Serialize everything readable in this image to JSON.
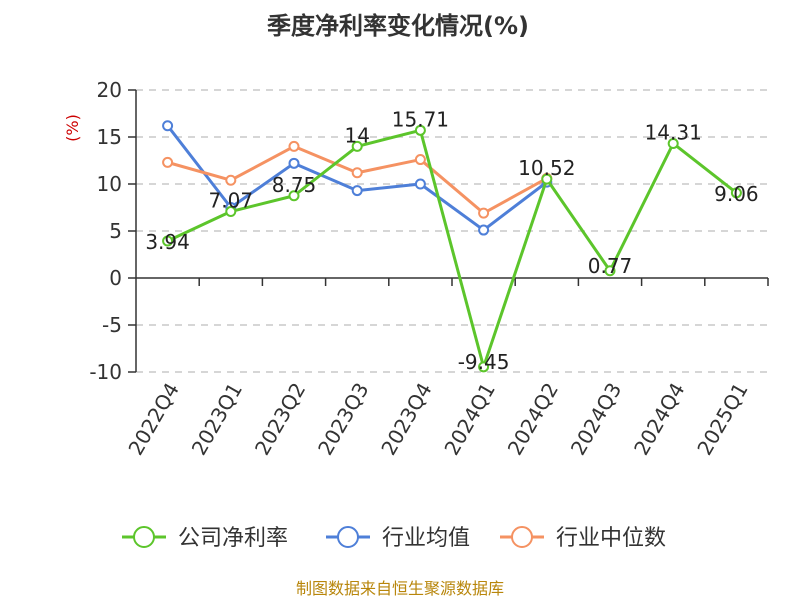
{
  "chart_data": {
    "type": "line",
    "title": "季度净利率变化情况(%)",
    "ylabel": "(%)",
    "xlabel": "",
    "ylim": [
      -10,
      20
    ],
    "yticks": [
      20,
      15,
      10,
      5,
      0,
      -5,
      -10
    ],
    "grid": true,
    "legend_position": "bottom",
    "categories": [
      "2022Q4",
      "2023Q1",
      "2023Q2",
      "2023Q3",
      "2023Q4",
      "2024Q1",
      "2024Q2",
      "2024Q3",
      "2024Q4",
      "2025Q1"
    ],
    "series": [
      {
        "name": "公司净利率",
        "color": "#5cc52b",
        "values": [
          3.94,
          7.07,
          8.75,
          14,
          15.71,
          -9.45,
          10.52,
          0.77,
          14.31,
          9.06
        ],
        "labels": [
          "3.94",
          "7.07",
          "8.75",
          "14",
          "15.71",
          "-9.45",
          "10.52",
          "0.77",
          "14.31",
          "9.06"
        ]
      },
      {
        "name": "行业均值",
        "color": "#4e7fd8",
        "values": [
          16.2,
          7.5,
          12.2,
          9.3,
          10,
          5.1,
          10.2,
          null,
          null,
          null
        ]
      },
      {
        "name": "行业中位数",
        "color": "#f59262",
        "values": [
          12.3,
          10.4,
          14,
          11.2,
          12.6,
          6.9,
          10.6,
          null,
          null,
          null
        ]
      }
    ],
    "source": "制图数据来自恒生聚源数据库"
  }
}
